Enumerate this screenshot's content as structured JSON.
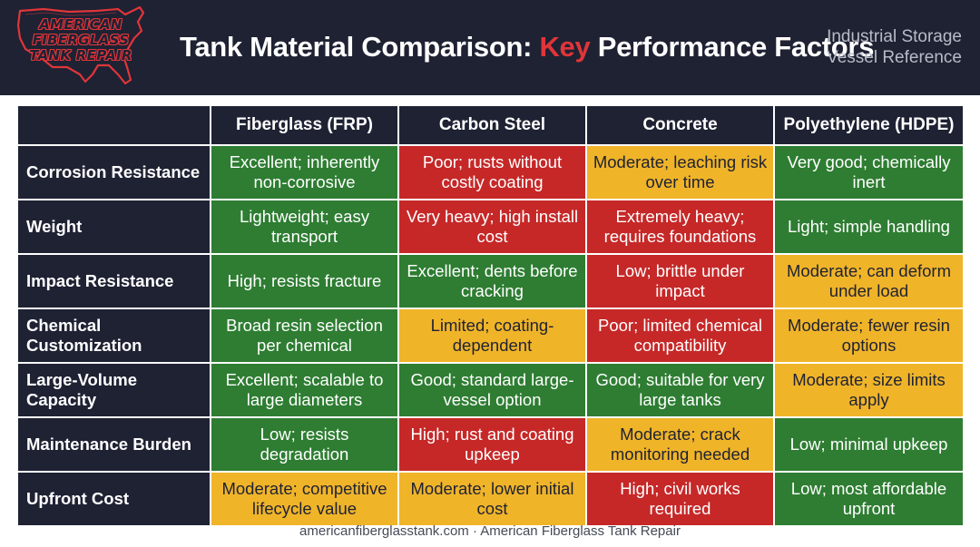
{
  "logo": {
    "lines": [
      "AMERICAN",
      "FIBERGLASS",
      "TANK REPAIR"
    ],
    "icon": "usa-map-outline-icon",
    "color": "#e0353a"
  },
  "header": {
    "title_before": "Tank Material Comparison: ",
    "title_accent": "Key",
    "title_after": " Performance Factors",
    "subtitle_line1": "Industrial Storage",
    "subtitle_line2": "Vessel Reference"
  },
  "colors": {
    "header_bg": "#1e2233",
    "good": "#2e7d32",
    "bad": "#c62828",
    "moderate": "#f0b429",
    "accent": "#e0353a"
  },
  "table": {
    "columns": [
      "Fiberglass (FRP)",
      "Carbon Steel",
      "Concrete",
      "Polyethylene (HDPE)"
    ],
    "rows": [
      {
        "label": "Corrosion Resistance",
        "cells": [
          {
            "text": "Excellent; inherently non-corrosive",
            "rating": "good"
          },
          {
            "text": "Poor; rusts without costly coating",
            "rating": "bad"
          },
          {
            "text": "Moderate; leaching risk over time",
            "rating": "mid"
          },
          {
            "text": "Very good; chemically inert",
            "rating": "good"
          }
        ]
      },
      {
        "label": "Weight",
        "cells": [
          {
            "text": "Lightweight; easy transport",
            "rating": "good"
          },
          {
            "text": "Very heavy; high install cost",
            "rating": "bad"
          },
          {
            "text": "Extremely heavy; requires foundations",
            "rating": "bad"
          },
          {
            "text": "Light; simple handling",
            "rating": "good"
          }
        ]
      },
      {
        "label": "Impact Resistance",
        "cells": [
          {
            "text": "High; resists fracture",
            "rating": "good"
          },
          {
            "text": "Excellent; dents before cracking",
            "rating": "good"
          },
          {
            "text": "Low; brittle under impact",
            "rating": "bad"
          },
          {
            "text": "Moderate; can deform under load",
            "rating": "mid"
          }
        ]
      },
      {
        "label": "Chemical Customization",
        "cells": [
          {
            "text": "Broad resin selection per chemical",
            "rating": "good"
          },
          {
            "text": "Limited; coating-dependent",
            "rating": "mid"
          },
          {
            "text": "Poor; limited chemical compatibility",
            "rating": "bad"
          },
          {
            "text": "Moderate; fewer resin options",
            "rating": "mid"
          }
        ]
      },
      {
        "label": "Large-Volume Capacity",
        "cells": [
          {
            "text": "Excellent; scalable to large diameters",
            "rating": "good"
          },
          {
            "text": "Good; standard large-vessel option",
            "rating": "good"
          },
          {
            "text": "Good; suitable for very large tanks",
            "rating": "good"
          },
          {
            "text": "Moderate; size limits apply",
            "rating": "mid"
          }
        ]
      },
      {
        "label": "Maintenance Burden",
        "cells": [
          {
            "text": "Low; resists degradation",
            "rating": "good"
          },
          {
            "text": "High; rust and coating upkeep",
            "rating": "bad"
          },
          {
            "text": "Moderate; crack monitoring needed",
            "rating": "mid"
          },
          {
            "text": "Low; minimal upkeep",
            "rating": "good"
          }
        ]
      },
      {
        "label": "Upfront Cost",
        "cells": [
          {
            "text": "Moderate; competitive lifecycle value",
            "rating": "mid"
          },
          {
            "text": "Moderate; lower initial cost",
            "rating": "mid"
          },
          {
            "text": "High; civil works required",
            "rating": "bad"
          },
          {
            "text": "Low; most affordable upfront",
            "rating": "good"
          }
        ]
      }
    ]
  },
  "footer": {
    "text": "americanfiberglasstank.com · American Fiberglass Tank Repair"
  }
}
